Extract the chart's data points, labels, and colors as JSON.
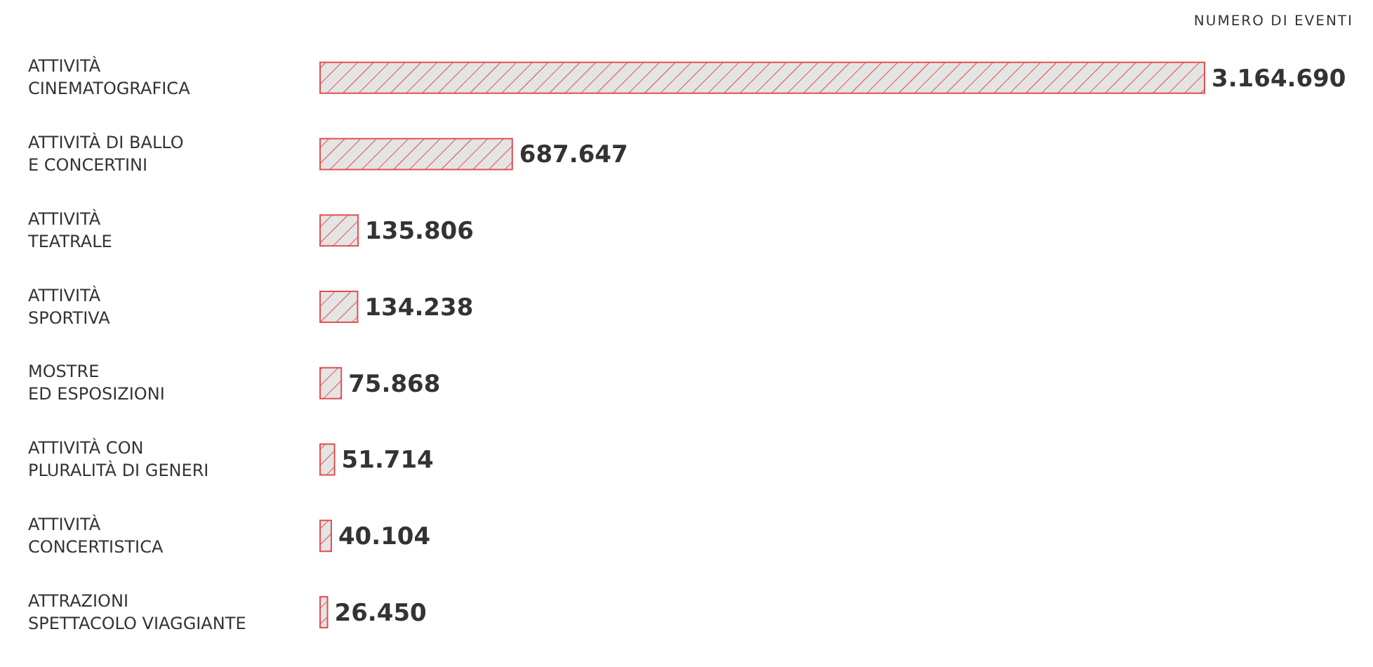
{
  "chart_data": {
    "type": "bar",
    "orientation": "horizontal",
    "xlabel": "NUMERO DI EVENTI",
    "categories": [
      "ATTIVITÀ\nCINEMATOGRAFICA",
      "ATTIVITÀ DI BALLO\nE CONCERTINI",
      "ATTIVITÀ\nTEATRALE",
      "ATTIVITÀ\nSPORTIVA",
      "MOSTRE\nED ESPOSIZIONI",
      "ATTIVITÀ CON\nPLURALITÀ DI GENERI",
      "ATTIVITÀ\nCONCERTISTICA",
      "ATTRAZIONI\nSPETTACOLO VIAGGIANTE"
    ],
    "values": [
      3164690,
      687647,
      135806,
      134238,
      75868,
      51714,
      40104,
      26450
    ],
    "value_labels": [
      "3.164.690",
      "687.647",
      "135.806",
      "134.238",
      "75.868",
      "51.714",
      "40.104",
      "26.450"
    ],
    "color": "#e05050",
    "tick_labels": "y"
  }
}
